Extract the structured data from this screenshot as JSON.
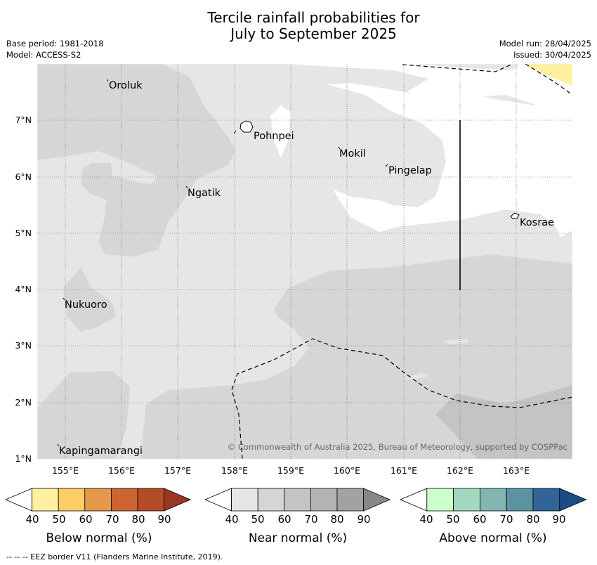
{
  "title_line1": "Tercile rainfall probabilities for",
  "title_line2": "July to September 2025",
  "base_period": "Base period: 1981-2018",
  "model": "Model: ACCESS-S2",
  "model_run": "Model run: 28/04/2025",
  "issued": "Issued: 30/04/2025",
  "copyright": "© Commonwealth of Australia 2025, Bureau of Meteorology, supported by COSPPac",
  "places": [
    "Oroluk",
    "Pohnpei",
    "Mokil",
    "Pingelap",
    "Ngatik",
    "Kosrae",
    "Nukuoro",
    "Kapingamarangi"
  ],
  "lat_labels": [
    "7°N",
    "6°N",
    "5°N",
    "4°N",
    "3°N",
    "2°N",
    "1°N"
  ],
  "lon_labels": [
    "155°E",
    "156°E",
    "157°E",
    "158°E",
    "159°E",
    "160°E",
    "161°E",
    "162°E",
    "163°E"
  ],
  "colorbars": [
    {
      "label": "Below normal (%)",
      "colors": [
        "#ffffff",
        "#fff0a0",
        "#ffcc66",
        "#e3984a",
        "#cd6533",
        "#b44c28",
        "#9b3622"
      ]
    },
    {
      "label": "Near normal (%)",
      "colors": [
        "#ffffff",
        "#e6e6e6",
        "#d5d5d5",
        "#c4c4c4",
        "#b3b3b3",
        "#a2a2a2",
        "#888888"
      ]
    },
    {
      "label": "Above normal (%)",
      "colors": [
        "#ffffff",
        "#ccffcc",
        "#a1d9be",
        "#80b5b0",
        "#5b93a3",
        "#316598",
        "#1a4d85"
      ]
    }
  ],
  "ticks": [
    "40",
    "50",
    "60",
    "70",
    "80",
    "90"
  ],
  "footnote": "--  --  -- EEZ border V11 (Flanders Marine Institute, 2019)."
}
